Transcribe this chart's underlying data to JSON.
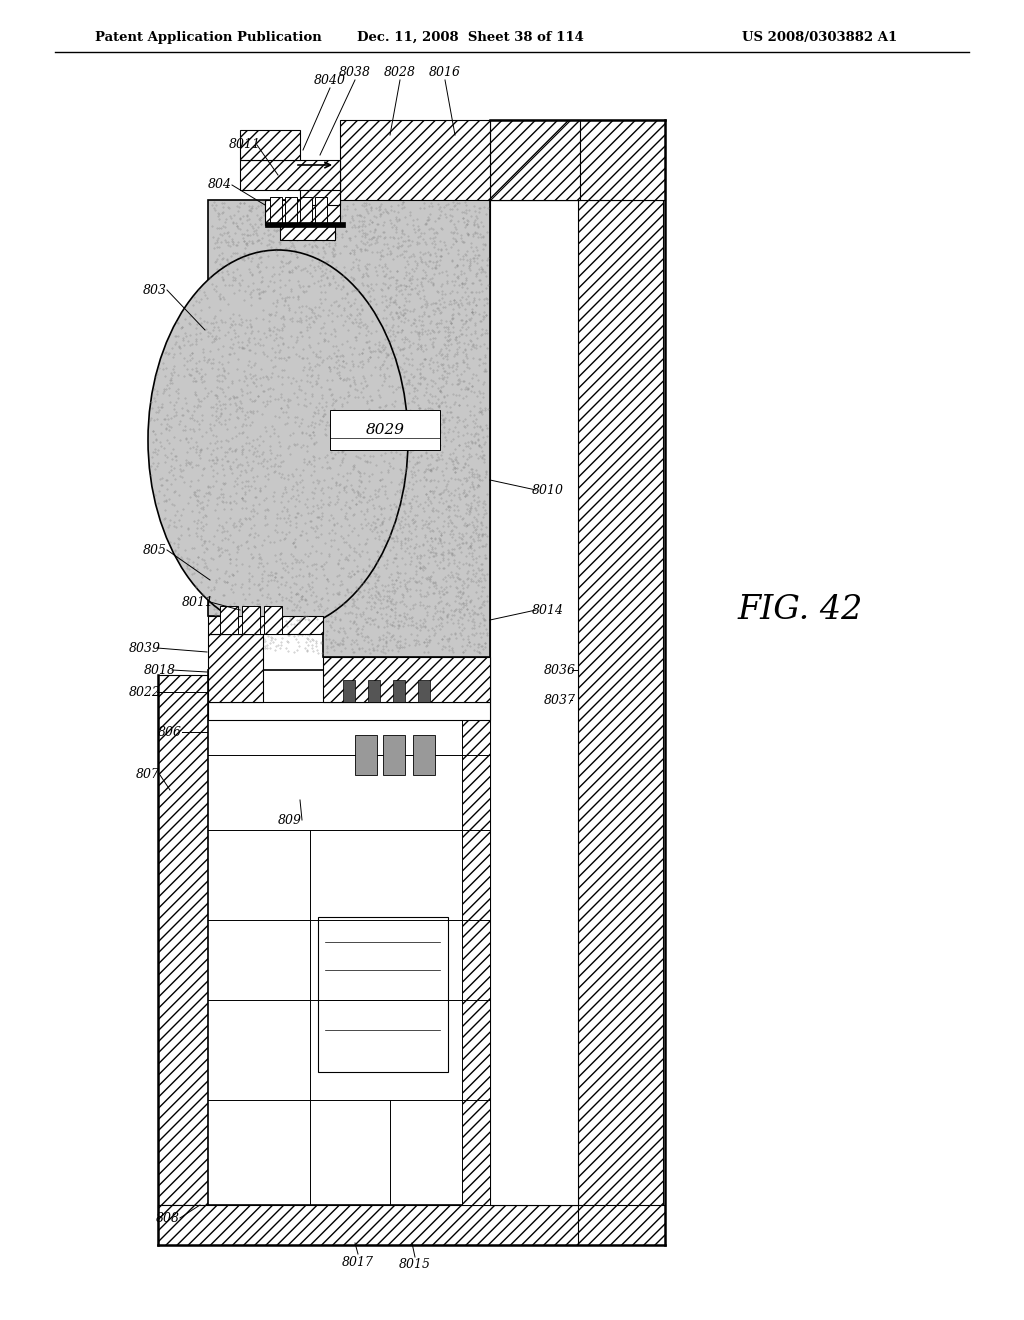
{
  "bg_color": "#ffffff",
  "line_color": "#000000",
  "header_left": "Patent Application Publication",
  "header_mid": "Dec. 11, 2008  Sheet 38 of 114",
  "header_right": "US 2008/0303882 A1",
  "fig_label": "FIG. 42",
  "hatch_gray": "#cccccc",
  "stipple_gray": "#c0c0c0"
}
